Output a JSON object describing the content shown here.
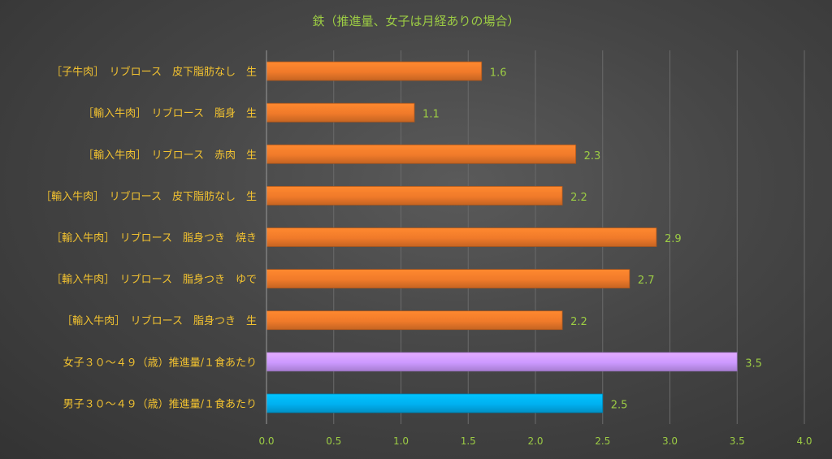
{
  "chart_data": {
    "type": "bar",
    "orientation": "horizontal",
    "title": "鉄（推進量、女子は月経ありの場合）",
    "xlabel": "",
    "ylabel": "",
    "xlim": [
      0,
      4.0
    ],
    "x_ticks": [
      "0.0",
      "0.5",
      "1.0",
      "1.5",
      "2.0",
      "2.5",
      "3.0",
      "3.5",
      "4.0"
    ],
    "grid": true,
    "legend": "none",
    "categories": [
      "［子牛肉］　リブロース　皮下脂肪なし　生",
      "［輸入牛肉］　リブロース　脂身　生",
      "［輸入牛肉］　リブロース　赤肉　生",
      "［輸入牛肉］　リブロース　皮下脂肪なし　生",
      "［輸入牛肉］　リブロース　脂身つき　焼き",
      "［輸入牛肉］　リブロース　脂身つき　ゆで",
      "［輸入牛肉］　リブロース　脂身つき　生",
      "女子３０～４９（歳）推進量/１食あたり",
      "男子３０～４９（歳）推進量/１食あたり"
    ],
    "values": [
      1.6,
      1.1,
      2.3,
      2.2,
      2.9,
      2.7,
      2.2,
      3.5,
      2.5
    ],
    "value_labels": [
      "1.6",
      "1.1",
      "2.3",
      "2.2",
      "2.9",
      "2.7",
      "2.2",
      "3.5",
      "2.5"
    ],
    "bar_colors": [
      "#f07a2a",
      "#f07a2a",
      "#f07a2a",
      "#f07a2a",
      "#f07a2a",
      "#f07a2a",
      "#f07a2a",
      "#cc99ff",
      "#00b0f0"
    ]
  }
}
